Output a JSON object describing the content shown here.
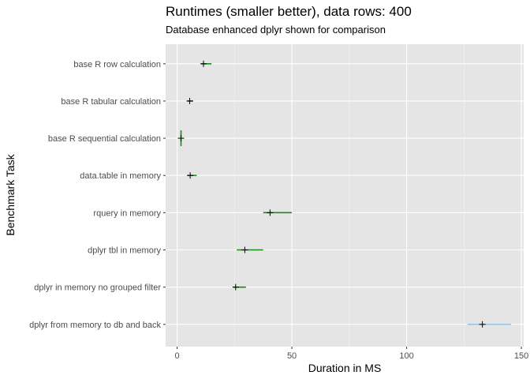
{
  "chart_data": {
    "type": "scatter",
    "title": "Runtimes (smaller better), data rows: 400",
    "subtitle": "Database enhanced dplyr shown for comparison",
    "xlabel": "Duration in MS",
    "ylabel": "Benchmark Task",
    "xlim": [
      -5,
      151
    ],
    "x_ticks": [
      0,
      50,
      100,
      150
    ],
    "grid": true,
    "colors": {
      "panel": "#e5e5e5",
      "grid_major": "#ffffff",
      "in_memory": "#1a8c1a",
      "database": "#9ac6e6",
      "marker": "#000000"
    },
    "categories": [
      "base R row calculation",
      "base R tabular calculation",
      "base R sequential calculation",
      "data.table in memory",
      "rquery in memory",
      "dplyr tbl in memory",
      "dplyr in memory no grouped filter",
      "dplyr from memory to db and back"
    ],
    "series": [
      {
        "values": [
          {
            "task": "base R row calculation",
            "min": 10.5,
            "max": 15.0,
            "point": 11.5,
            "group": "in_memory"
          },
          {
            "task": "base R tabular calculation",
            "min": 4.5,
            "max": 7.0,
            "point": 5.5,
            "group": "in_memory"
          },
          {
            "task": "base R sequential calculation",
            "min": 1.5,
            "max": 1.9,
            "point": 1.7,
            "group": "in_memory"
          },
          {
            "task": "data.table in memory",
            "min": 4.5,
            "max": 8.5,
            "point": 5.7,
            "group": "in_memory"
          },
          {
            "task": "rquery in memory",
            "min": 37.5,
            "max": 50.0,
            "point": 40.5,
            "group": "in_memory"
          },
          {
            "task": "dplyr tbl in memory",
            "min": 26.0,
            "max": 37.5,
            "point": 29.5,
            "group": "in_memory"
          },
          {
            "task": "dplyr in memory no grouped filter",
            "min": 24.5,
            "max": 30.0,
            "point": 25.5,
            "group": "in_memory"
          },
          {
            "task": "dplyr from memory to db and back",
            "min": 126.5,
            "max": 145.5,
            "point": 133.0,
            "group": "database"
          }
        ]
      }
    ]
  }
}
